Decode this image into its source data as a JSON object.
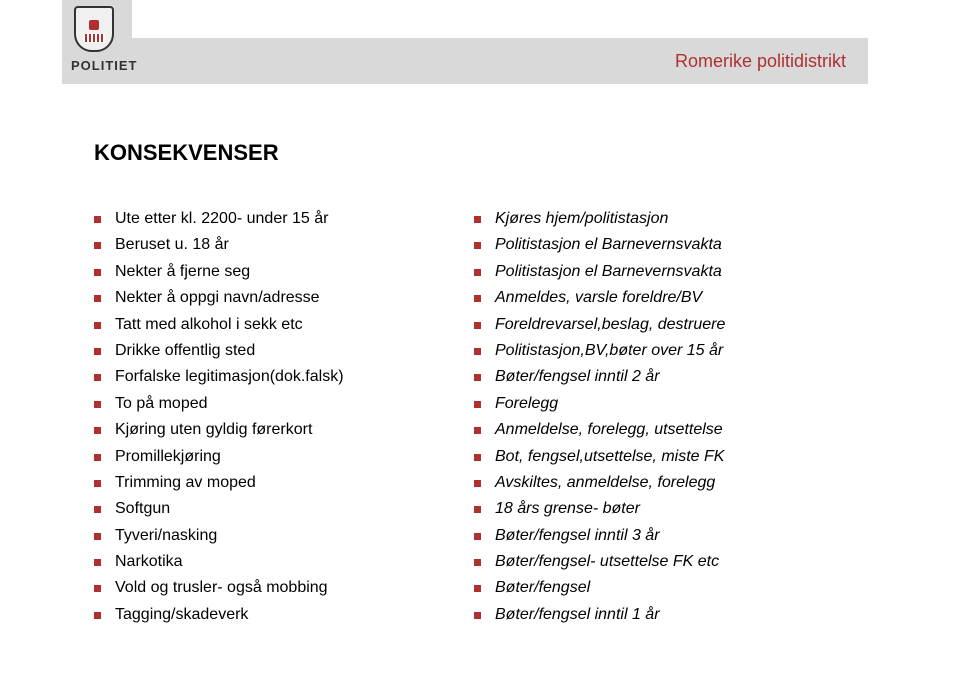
{
  "banner": {
    "text": "Romerike politidistrikt"
  },
  "logo": {
    "text": "POLITIET"
  },
  "title": "KONSEKVENSER",
  "bullet_color": "#b03030",
  "left_items": [
    "Ute etter kl. 2200- under 15 år",
    "Beruset u. 18 år",
    "Nekter å fjerne seg",
    "Nekter å oppgi navn/adresse",
    "Tatt med alkohol i sekk etc",
    "Drikke offentlig sted",
    "Forfalske legitimasjon(dok.falsk)",
    "To på moped",
    "Kjøring uten gyldig førerkort",
    "Promillekjøring",
    "Trimming av moped",
    "Softgun",
    "Tyveri/nasking",
    "Narkotika",
    "Vold og trusler- også mobbing",
    "Tagging/skadeverk"
  ],
  "right_items": [
    "Kjøres hjem/politistasjon",
    "Politistasjon el Barnevernsvakta",
    "Politistasjon el Barnevernsvakta",
    "Anmeldes, varsle foreldre/BV",
    "Foreldrevarsel,beslag, destruere",
    "Politistasjon,BV,bøter over 15 år",
    "Bøter/fengsel inntil 2 år",
    "Forelegg",
    "Anmeldelse, forelegg, utsettelse",
    "Bot, fengsel,utsettelse, miste FK",
    "Avskiltes, anmeldelse, forelegg",
    "18 års grense- bøter",
    "Bøter/fengsel inntil 3 år",
    "Bøter/fengsel- utsettelse FK etc",
    "Bøter/fengsel",
    "Bøter/fengsel inntil 1 år"
  ]
}
